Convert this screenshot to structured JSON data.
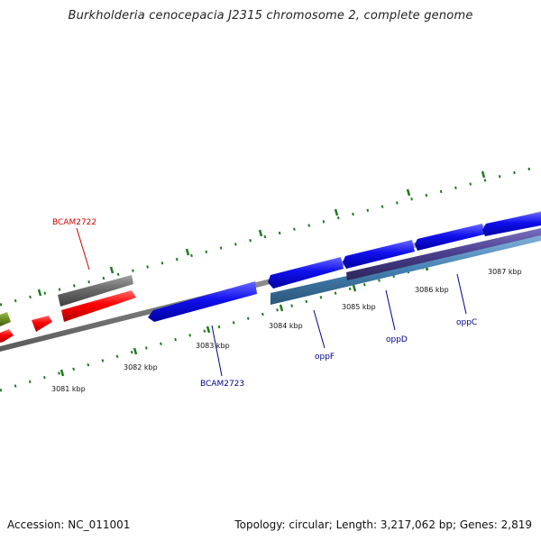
{
  "title": "Burkholderia cenocepacia J2315 chromosome 2, complete genome",
  "footer": {
    "accession": "Accession: NC_011001",
    "stats": "Topology: circular; Length: 3,217,062 bp; Genes: 2,819"
  },
  "colors": {
    "backbone": "#8c8c8c",
    "tick": "#1f7a1f",
    "label_red": "#cc0000",
    "label_blue": "#00008b",
    "gene_red": "#ff0000",
    "gene_blue": "#1010ee",
    "gene_gray": "#6a6a6a",
    "gene_olive": "#6b8e23",
    "gene_steel": "#4682b4",
    "gene_purple": "#483d8b"
  },
  "scale_labels": [
    "3081 kbp",
    "3082 kbp",
    "3083 kbp",
    "3084 kbp",
    "3085 kbp",
    "3086 kbp",
    "3087 kbp"
  ],
  "gene_labels": [
    {
      "text": "BCAM2722",
      "color": "red"
    },
    {
      "text": "BCAM2723",
      "color": "blue"
    },
    {
      "text": "oppF",
      "color": "blue"
    },
    {
      "text": "oppD",
      "color": "blue"
    },
    {
      "text": "oppC",
      "color": "blue"
    }
  ]
}
